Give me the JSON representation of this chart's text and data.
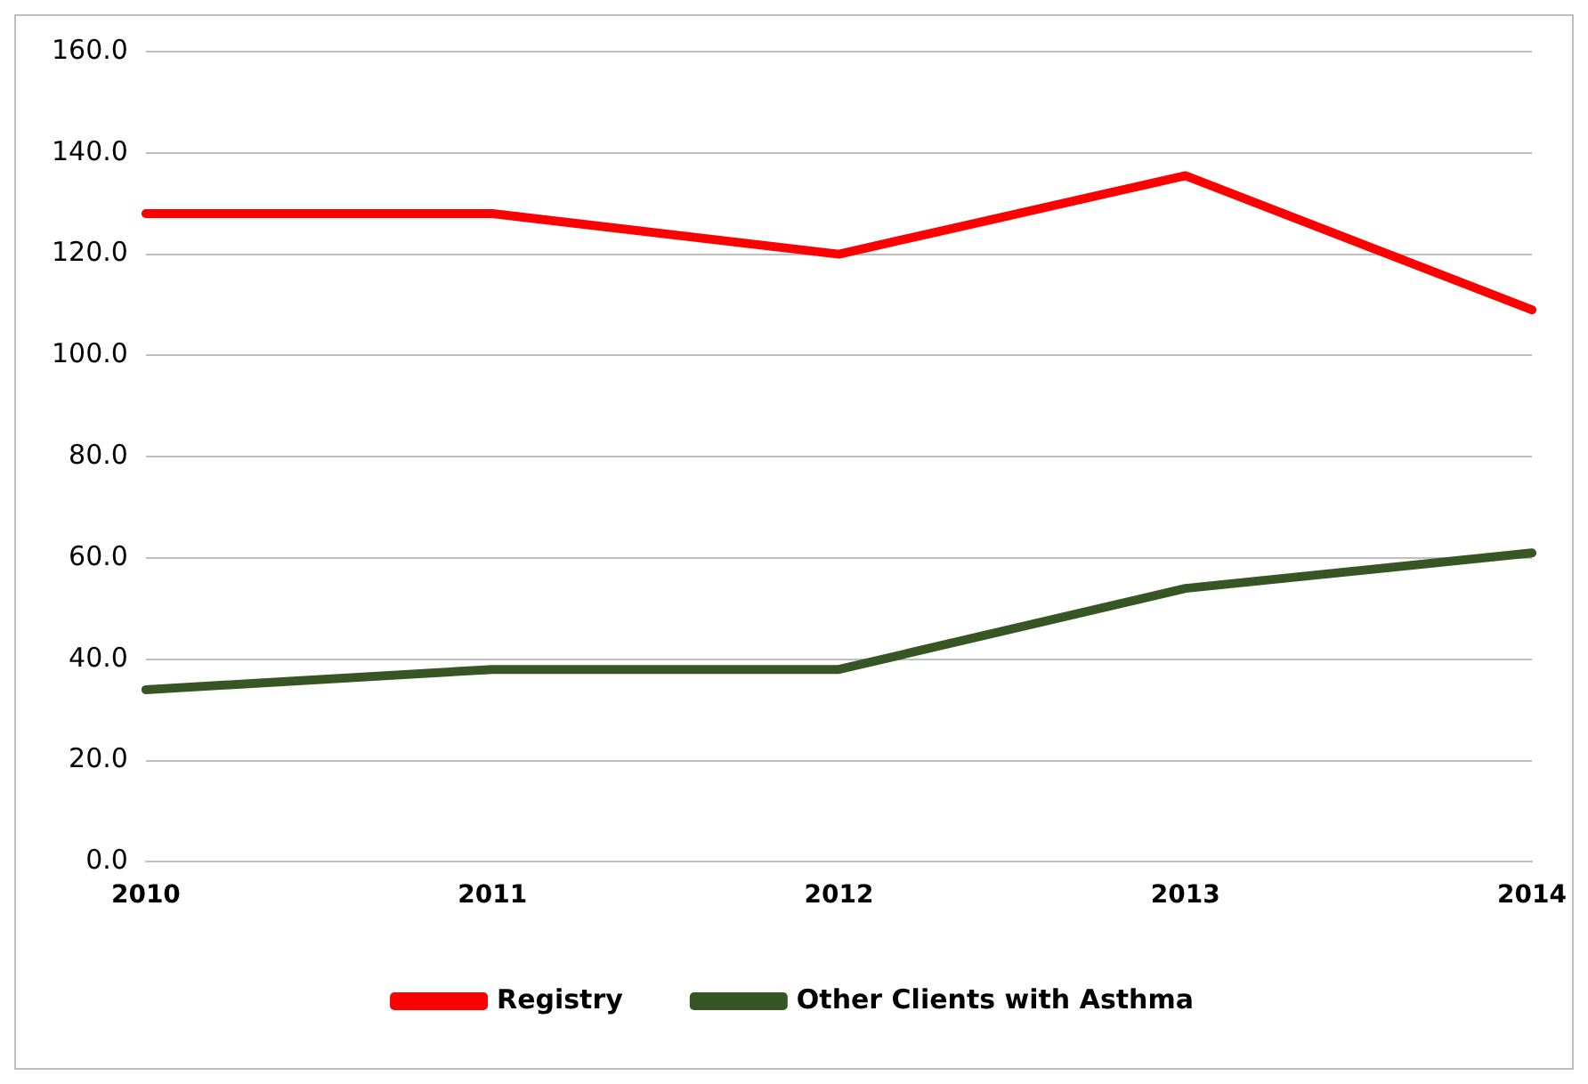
{
  "chart_data": {
    "type": "line",
    "categories": [
      "2010",
      "2011",
      "2012",
      "2013",
      "2014"
    ],
    "series": [
      {
        "name": "Registry",
        "color": "#ff0000",
        "values": [
          128,
          128,
          120,
          135.5,
          109
        ]
      },
      {
        "name": "Other Clients with Asthma",
        "color": "#375623",
        "values": [
          34,
          38,
          38,
          54,
          61
        ]
      }
    ],
    "ylim": [
      0,
      160
    ],
    "yticks": [
      {
        "value": 0,
        "label": "0.0"
      },
      {
        "value": 20,
        "label": "20.0"
      },
      {
        "value": 40,
        "label": "40.0"
      },
      {
        "value": 60,
        "label": "60.0"
      },
      {
        "value": 80,
        "label": "80.0"
      },
      {
        "value": 100,
        "label": "100.0"
      },
      {
        "value": 120,
        "label": "120.0"
      },
      {
        "value": 140,
        "label": "140.0"
      },
      {
        "value": 160,
        "label": "160.0"
      }
    ],
    "grid": "y",
    "legend": "bottom",
    "marker": "none",
    "line_style": "solid"
  }
}
